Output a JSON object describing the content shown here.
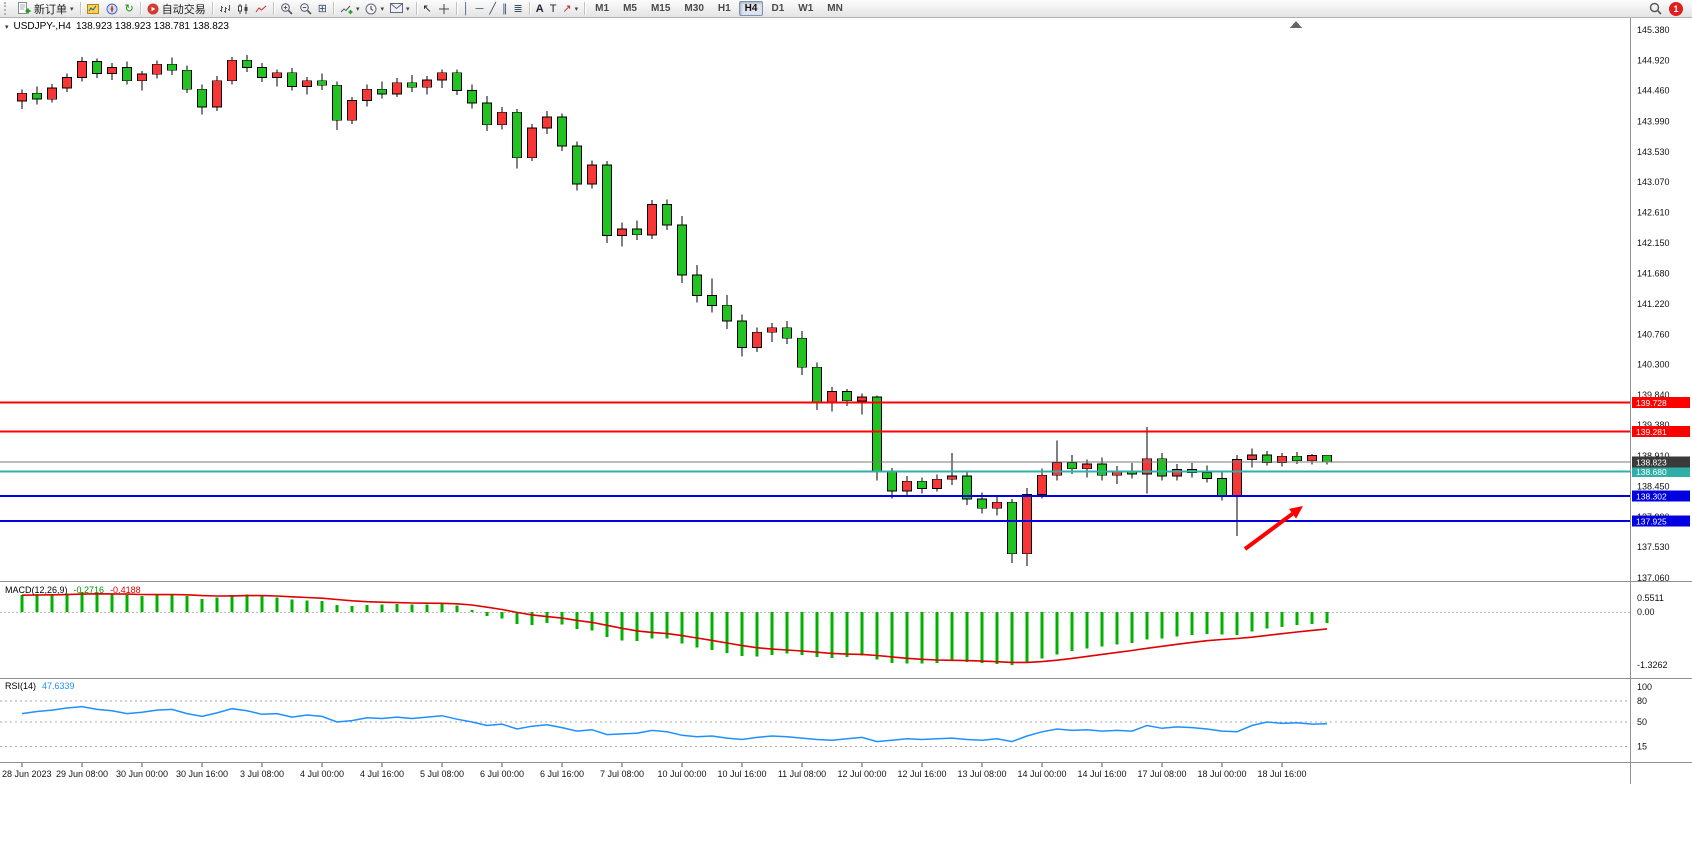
{
  "toolbar": {
    "new_order": "新订单",
    "auto_trading": "自动交易",
    "timeframes": [
      "M1",
      "M5",
      "M15",
      "M30",
      "H1",
      "H4",
      "D1",
      "W1",
      "MN"
    ],
    "active_timeframe": "H4",
    "notification_count": "1"
  },
  "chart": {
    "symbol_title": "USDJPY-,H4",
    "ohlc_text": "138.923 138.923 138.781 138.823",
    "price_axis_labels": [
      "145.380",
      "144.920",
      "144.460",
      "143.990",
      "143.530",
      "143.070",
      "142.610",
      "142.150",
      "141.680",
      "141.220",
      "140.760",
      "140.300",
      "139.840",
      "139.380",
      "138.910",
      "138.450",
      "137.990",
      "137.530",
      "137.060"
    ],
    "hlines": [
      {
        "price": 139.728,
        "label": "139.728",
        "color": "#FF0000"
      },
      {
        "price": 139.281,
        "label": "139.281",
        "color": "#FF0000"
      },
      {
        "price": 138.68,
        "label": "138.680",
        "color": "#2FAFA8"
      },
      {
        "price": 138.302,
        "label": "138.302",
        "color": "#0000E0"
      },
      {
        "price": 137.925,
        "label": "137.925",
        "color": "#0000E0"
      }
    ],
    "bid": {
      "price": 138.823,
      "label": "138.823",
      "color": "#3A3A3A"
    }
  },
  "macd_panel": {
    "name": "MACD(12,26,9)",
    "value_main": "-0.2716",
    "value_signal": "-0.4188",
    "axis_labels": [
      "0.5511",
      "0.00",
      "-1.3262"
    ]
  },
  "rsi_panel": {
    "name": "RSI(14)",
    "value": "47.6339",
    "axis_labels": [
      "100",
      "80",
      "50",
      "15"
    ]
  },
  "time_axis": [
    "28 Jun 2023",
    "29 Jun 08:00",
    "30 Jun 00:00",
    "30 Jun 16:00",
    "3 Jul 08:00",
    "4 Jul 00:00",
    "4 Jul 16:00",
    "5 Jul 08:00",
    "6 Jul 00:00",
    "6 Jul 16:00",
    "7 Jul 08:00",
    "10 Jul 00:00",
    "10 Jul 16:00",
    "11 Jul 08:00",
    "12 Jul 00:00",
    "12 Jul 16:00",
    "13 Jul 08:00",
    "14 Jul 00:00",
    "14 Jul 16:00",
    "17 Jul 08:00",
    "18 Jul 00:00",
    "18 Jul 16:00"
  ],
  "chart_data": [
    {
      "type": "candlestick",
      "symbol": "USDJPY-",
      "timeframe": "H4",
      "up_color": "#F93636",
      "down_color": "#23C223",
      "ylim": [
        137.03,
        145.56
      ],
      "candles": [
        [
          144.3,
          144.48,
          144.18,
          144.42
        ],
        [
          144.42,
          144.52,
          144.25,
          144.33
        ],
        [
          144.33,
          144.56,
          144.28,
          144.5
        ],
        [
          144.5,
          144.72,
          144.44,
          144.66
        ],
        [
          144.66,
          144.97,
          144.6,
          144.9
        ],
        [
          144.9,
          144.95,
          144.65,
          144.72
        ],
        [
          144.72,
          144.88,
          144.62,
          144.81
        ],
        [
          144.81,
          144.9,
          144.55,
          144.61
        ],
        [
          144.61,
          144.76,
          144.46,
          144.71
        ],
        [
          144.71,
          144.92,
          144.64,
          144.86
        ],
        [
          144.86,
          144.96,
          144.7,
          144.77
        ],
        [
          144.77,
          144.84,
          144.42,
          144.48
        ],
        [
          144.48,
          144.55,
          144.1,
          144.21
        ],
        [
          144.21,
          144.68,
          144.15,
          144.61
        ],
        [
          144.61,
          144.97,
          144.55,
          144.92
        ],
        [
          144.92,
          145.0,
          144.74,
          144.81
        ],
        [
          144.81,
          144.88,
          144.59,
          144.66
        ],
        [
          144.66,
          144.78,
          144.52,
          144.73
        ],
        [
          144.73,
          144.8,
          144.46,
          144.52
        ],
        [
          144.52,
          144.67,
          144.4,
          144.61
        ],
        [
          144.61,
          144.72,
          144.47,
          144.54
        ],
        [
          144.54,
          144.6,
          143.86,
          144.01
        ],
        [
          144.01,
          144.36,
          143.95,
          144.31
        ],
        [
          144.31,
          144.55,
          144.22,
          144.48
        ],
        [
          144.48,
          144.6,
          144.34,
          144.41
        ],
        [
          144.41,
          144.65,
          144.36,
          144.58
        ],
        [
          144.58,
          144.7,
          144.44,
          144.51
        ],
        [
          144.51,
          144.68,
          144.4,
          144.62
        ],
        [
          144.62,
          144.78,
          144.5,
          144.73
        ],
        [
          144.73,
          144.78,
          144.39,
          144.46
        ],
        [
          144.46,
          144.55,
          144.19,
          144.27
        ],
        [
          144.27,
          144.38,
          143.85,
          143.94
        ],
        [
          143.94,
          144.21,
          143.87,
          144.13
        ],
        [
          144.13,
          144.18,
          143.28,
          143.44
        ],
        [
          143.44,
          143.95,
          143.39,
          143.89
        ],
        [
          143.89,
          144.15,
          143.8,
          144.06
        ],
        [
          144.06,
          144.11,
          143.54,
          143.62
        ],
        [
          143.62,
          143.69,
          142.94,
          143.04
        ],
        [
          143.04,
          143.4,
          142.97,
          143.33
        ],
        [
          143.33,
          143.39,
          142.15,
          142.26
        ],
        [
          142.26,
          142.46,
          142.09,
          142.36
        ],
        [
          142.36,
          142.49,
          142.19,
          142.27
        ],
        [
          142.27,
          142.8,
          142.21,
          142.73
        ],
        [
          142.73,
          142.81,
          142.34,
          142.42
        ],
        [
          142.42,
          142.56,
          141.54,
          141.66
        ],
        [
          141.66,
          141.81,
          141.24,
          141.35
        ],
        [
          141.35,
          141.61,
          141.09,
          141.2
        ],
        [
          141.2,
          141.36,
          140.84,
          140.96
        ],
        [
          140.96,
          141.06,
          140.42,
          140.56
        ],
        [
          140.56,
          140.86,
          140.49,
          140.79
        ],
        [
          140.79,
          140.93,
          140.64,
          140.86
        ],
        [
          140.86,
          140.96,
          140.61,
          140.7
        ],
        [
          140.7,
          140.81,
          140.14,
          140.26
        ],
        [
          140.26,
          140.33,
          139.61,
          139.72
        ],
        [
          139.72,
          139.96,
          139.59,
          139.89
        ],
        [
          139.89,
          139.93,
          139.67,
          139.75
        ],
        [
          139.75,
          139.86,
          139.54,
          139.81
        ],
        [
          139.81,
          139.83,
          138.54,
          138.68
        ],
        [
          138.68,
          138.73,
          138.27,
          138.38
        ],
        [
          138.38,
          138.61,
          138.29,
          138.53
        ],
        [
          138.53,
          138.59,
          138.34,
          138.42
        ],
        [
          138.42,
          138.63,
          138.37,
          138.56
        ],
        [
          138.56,
          138.96,
          138.47,
          138.61
        ],
        [
          138.61,
          138.66,
          138.17,
          138.26
        ],
        [
          138.26,
          138.36,
          138.04,
          138.12
        ],
        [
          138.12,
          138.29,
          138.01,
          138.21
        ],
        [
          138.21,
          138.26,
          137.29,
          137.43
        ],
        [
          137.43,
          138.43,
          137.24,
          138.33
        ],
        [
          138.33,
          138.72,
          138.27,
          138.62
        ],
        [
          138.62,
          139.15,
          138.54,
          138.81
        ],
        [
          138.81,
          138.93,
          138.64,
          138.72
        ],
        [
          138.72,
          138.86,
          138.59,
          138.79
        ],
        [
          138.79,
          138.89,
          138.54,
          138.62
        ],
        [
          138.62,
          138.76,
          138.49,
          138.69
        ],
        [
          138.69,
          138.81,
          138.57,
          138.64
        ],
        [
          138.64,
          139.35,
          138.34,
          138.87
        ],
        [
          138.87,
          138.96,
          138.54,
          138.61
        ],
        [
          138.61,
          138.79,
          138.54,
          138.71
        ],
        [
          138.71,
          138.81,
          138.59,
          138.66
        ],
        [
          138.66,
          138.77,
          138.51,
          138.57
        ],
        [
          138.57,
          138.66,
          138.24,
          138.31
        ],
        [
          138.31,
          138.93,
          137.7,
          138.86
        ],
        [
          138.86,
          139.03,
          138.74,
          138.93
        ],
        [
          138.93,
          138.99,
          138.77,
          138.81
        ],
        [
          138.81,
          138.96,
          138.75,
          138.91
        ],
        [
          138.91,
          138.97,
          138.79,
          138.84
        ],
        [
          138.84,
          138.94,
          138.78,
          138.92
        ],
        [
          138.923,
          138.923,
          138.781,
          138.823
        ]
      ],
      "annotations": [
        {
          "type": "arrow",
          "color": "#FF0000",
          "tail_x": 1245,
          "tail_y": 549,
          "head_x": 1303,
          "head_y": 506,
          "note": "red arrow pointing up-right at price bounce from support"
        }
      ]
    },
    {
      "type": "bar",
      "name": "MACD(12,26,9)",
      "current_main": -0.2716,
      "current_signal": -0.4188,
      "signal_ema_period": 9,
      "ylim": [
        -1.3262,
        0.5511
      ],
      "values": [
        0.42,
        0.45,
        0.44,
        0.46,
        0.5,
        0.48,
        0.45,
        0.42,
        0.4,
        0.43,
        0.44,
        0.4,
        0.33,
        0.36,
        0.42,
        0.44,
        0.4,
        0.36,
        0.31,
        0.29,
        0.27,
        0.18,
        0.15,
        0.17,
        0.19,
        0.2,
        0.19,
        0.19,
        0.21,
        0.16,
        0.05,
        -0.1,
        -0.16,
        -0.3,
        -0.33,
        -0.28,
        -0.31,
        -0.43,
        -0.46,
        -0.63,
        -0.71,
        -0.73,
        -0.66,
        -0.66,
        -0.79,
        -0.89,
        -0.95,
        -1.03,
        -1.1,
        -1.11,
        -1.07,
        -1.04,
        -1.07,
        -1.13,
        -1.15,
        -1.13,
        -1.09,
        -1.19,
        -1.27,
        -1.29,
        -1.29,
        -1.27,
        -1.23,
        -1.25,
        -1.28,
        -1.3,
        -1.33,
        -1.26,
        -1.16,
        -1.06,
        -0.98,
        -0.91,
        -0.86,
        -0.81,
        -0.77,
        -0.69,
        -0.66,
        -0.61,
        -0.57,
        -0.55,
        -0.56,
        -0.57,
        -0.49,
        -0.41,
        -0.37,
        -0.33,
        -0.3,
        -0.2716
      ]
    },
    {
      "type": "line",
      "name": "RSI(14)",
      "current": 47.6339,
      "ylim": [
        0,
        100
      ],
      "levels": [
        80,
        50,
        15
      ],
      "values": [
        62,
        65,
        67,
        70,
        72,
        68,
        66,
        62,
        64,
        67,
        68,
        62,
        58,
        63,
        69,
        66,
        61,
        62,
        57,
        60,
        58,
        50,
        52,
        56,
        55,
        57,
        55,
        57,
        59,
        54,
        50,
        45,
        47,
        40,
        44,
        46,
        42,
        37,
        39,
        32,
        33,
        34,
        38,
        36,
        31,
        29,
        30,
        27,
        25,
        28,
        30,
        29,
        27,
        25,
        24,
        26,
        28,
        22,
        24,
        26,
        25,
        26,
        27,
        25,
        24,
        26,
        22,
        30,
        36,
        40,
        38,
        39,
        37,
        38,
        37,
        45,
        41,
        43,
        42,
        40,
        37,
        36,
        45,
        50,
        48,
        49,
        47,
        47.6339
      ]
    }
  ]
}
